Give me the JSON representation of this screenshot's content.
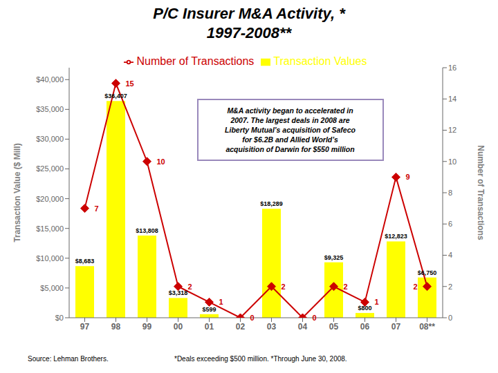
{
  "chart_data": {
    "type": "bar",
    "title": "P/C Insurer M&A Activity, *\n1997-2008**",
    "categories": [
      "97",
      "98",
      "99",
      "00",
      "01",
      "02",
      "03",
      "04",
      "05",
      "06",
      "07",
      "08**"
    ],
    "series": [
      {
        "name": "Transaction Values",
        "type": "bar",
        "color": "#ffff00",
        "values": [
          8683,
          36407,
          13808,
          3318,
          599,
          0,
          18289,
          0,
          9325,
          800,
          12823,
          6750
        ],
        "value_labels": [
          "$8,683",
          "$36,407",
          "$13,808",
          "$3,318",
          "$599",
          null,
          "$18,289",
          null,
          "$9,325",
          "$800",
          "$12,823",
          "$6,750"
        ]
      },
      {
        "name": "Number of Transactions",
        "type": "line",
        "axis": "y2",
        "color": "#cc0000",
        "marker": "diamond",
        "values": [
          7,
          15,
          10,
          2,
          1,
          0,
          2,
          0,
          2,
          1,
          9,
          2
        ]
      }
    ],
    "ylabel": "Transaction Value ($ Mill)",
    "y2label": "Number of Transactions",
    "ylim": [
      0,
      42000
    ],
    "yticks": [
      {
        "value": 0,
        "label": "$0"
      },
      {
        "value": 5000,
        "label": "$5,000"
      },
      {
        "value": 10000,
        "label": "$10,000"
      },
      {
        "value": 15000,
        "label": "$15,000"
      },
      {
        "value": 20000,
        "label": "$20,000"
      },
      {
        "value": 25000,
        "label": "$25,000"
      },
      {
        "value": 30000,
        "label": "$30,000"
      },
      {
        "value": 35000,
        "label": "$35,000"
      },
      {
        "value": 40000,
        "label": "$40,000"
      }
    ],
    "y2lim": [
      0,
      16
    ],
    "y2ticks": [
      0,
      2,
      4,
      6,
      8,
      10,
      12,
      14,
      16
    ],
    "data_labels": true,
    "grid": false,
    "legend": "top",
    "annotation": "M&A activity began to accelerated in\n2007.  The largest deals in 2008 are\nLiberty Mutual’s acquisition of Safeco\nfor $6.2B and Allied World’s\nacquisition of Darwin for $550 million",
    "source": "Source: Lehman Brothers.",
    "footnote": "*Deals exceeding $500 million.  *Through June 30, 2008."
  }
}
